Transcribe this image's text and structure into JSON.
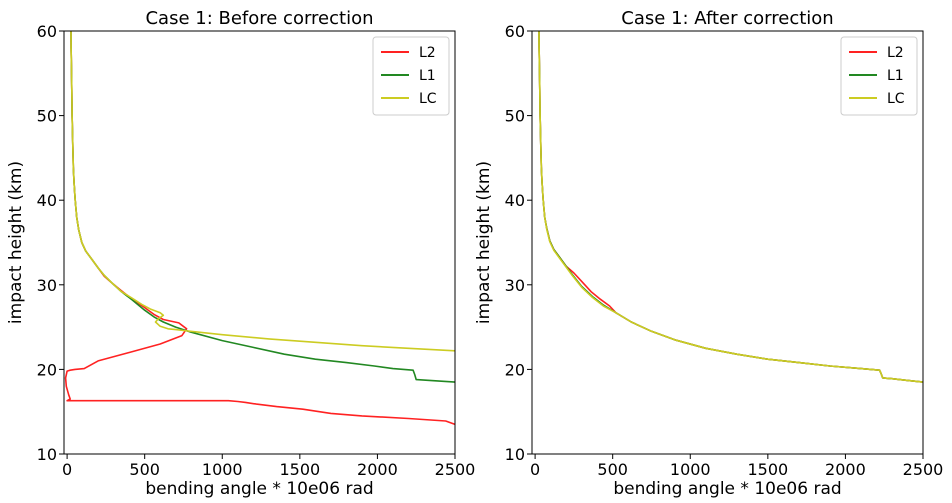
{
  "chart_data": [
    {
      "type": "line",
      "title": "Case 1: Before correction",
      "xlabel": "bending angle * 10e06 rad",
      "ylabel": "impact height (km)",
      "xlim": [
        -20,
        2500
      ],
      "ylim": [
        10,
        60
      ],
      "xticks": [
        0,
        500,
        1000,
        1500,
        2000,
        2500
      ],
      "yticks": [
        10,
        20,
        30,
        40,
        50,
        60
      ],
      "grid": false,
      "legend_position": "top-right",
      "series": [
        {
          "name": "L2",
          "color": "#ff2222",
          "x": [
            2500,
            2440,
            2200,
            1900,
            1700,
            1520,
            1350,
            1220,
            1150,
            1100,
            1040,
            500,
            0,
            20,
            10,
            -5,
            -10,
            0,
            20,
            50,
            110,
            200,
            400,
            600,
            740,
            770,
            720,
            620,
            560,
            500,
            420,
            350,
            290,
            240,
            200,
            160,
            120,
            95,
            75,
            62,
            52,
            45,
            40,
            36,
            32,
            30,
            28,
            26,
            25
          ],
          "y": [
            13.5,
            13.9,
            14.2,
            14.5,
            14.8,
            15.3,
            15.6,
            15.9,
            16.1,
            16.2,
            16.3,
            16.3,
            16.3,
            16.5,
            17.0,
            18.0,
            19.0,
            19.8,
            19.9,
            20.0,
            20.1,
            21.0,
            22.0,
            23.0,
            24.0,
            24.8,
            25.5,
            25.9,
            26.5,
            27.3,
            28.3,
            29.3,
            30.2,
            31.0,
            32.0,
            33.0,
            34.0,
            35.0,
            36.5,
            38.0,
            40.0,
            42.0,
            44.0,
            47.0,
            50.0,
            53.0,
            56.0,
            58.0,
            60.0
          ]
        },
        {
          "name": "L1",
          "color": "#228822",
          "x": [
            2500,
            2250,
            2240,
            2230,
            2100,
            1980,
            1800,
            1600,
            1400,
            1200,
            1000,
            800,
            700,
            620,
            560,
            500,
            420,
            350,
            290,
            240,
            200,
            160,
            120,
            95,
            75,
            62,
            52,
            45,
            40,
            36,
            32,
            30,
            28,
            26,
            25
          ],
          "y": [
            18.5,
            18.8,
            19.4,
            19.9,
            20.1,
            20.4,
            20.8,
            21.2,
            21.8,
            22.6,
            23.4,
            24.4,
            25.0,
            25.6,
            26.2,
            27.0,
            28.2,
            29.2,
            30.2,
            31.1,
            32.0,
            33.0,
            34.0,
            35.0,
            36.5,
            38.0,
            40.0,
            42.0,
            44.0,
            47.0,
            50.0,
            53.0,
            56.0,
            58.0,
            60.0
          ]
        },
        {
          "name": "LC",
          "color": "#cccc22",
          "x": [
            2500,
            2200,
            1900,
            1600,
            1300,
            1000,
            850,
            750,
            700,
            650,
            600,
            570,
            590,
            620,
            600,
            540,
            480,
            420,
            350,
            290,
            240,
            200,
            160,
            120,
            95,
            75,
            62,
            52,
            45,
            40,
            36,
            32,
            30,
            28,
            26,
            25
          ],
          "y": [
            22.2,
            22.5,
            22.8,
            23.2,
            23.6,
            24.1,
            24.4,
            24.6,
            24.7,
            24.8,
            25.1,
            25.6,
            26.0,
            26.4,
            26.7,
            27.1,
            27.7,
            28.4,
            29.2,
            30.2,
            31.1,
            32.0,
            33.0,
            34.0,
            35.0,
            36.5,
            38.0,
            40.0,
            42.0,
            44.0,
            47.0,
            50.0,
            53.0,
            56.0,
            58.0,
            60.0
          ]
        }
      ]
    },
    {
      "type": "line",
      "title": "Case 1: After correction",
      "xlabel": "bending angle * 10e06 rad",
      "ylabel": "impact height (km)",
      "xlim": [
        -20,
        2500
      ],
      "ylim": [
        10,
        60
      ],
      "xticks": [
        0,
        500,
        1000,
        1500,
        2000,
        2500
      ],
      "yticks": [
        10,
        20,
        30,
        40,
        50,
        60
      ],
      "grid": false,
      "legend_position": "top-right",
      "series": [
        {
          "name": "L2",
          "color": "#ff2222",
          "x": [
            2500,
            2400,
            2300,
            2240,
            2230,
            2220,
            2100,
            1900,
            1700,
            1500,
            1300,
            1100,
            900,
            750,
            620,
            520,
            480,
            420,
            360,
            300,
            250,
            200,
            160,
            120,
            95,
            75,
            62,
            52,
            45,
            40,
            36,
            32,
            30,
            28,
            26,
            25
          ],
          "y": [
            18.5,
            18.7,
            18.9,
            19.0,
            19.5,
            19.9,
            20.1,
            20.4,
            20.8,
            21.2,
            21.8,
            22.5,
            23.5,
            24.5,
            25.6,
            26.7,
            27.5,
            28.3,
            29.2,
            30.4,
            31.4,
            32.2,
            33.2,
            34.2,
            35.2,
            36.7,
            38.0,
            40.0,
            42.0,
            44.0,
            47.0,
            50.0,
            53.0,
            56.0,
            58.0,
            60.0
          ]
        },
        {
          "name": "L1",
          "color": "#228822",
          "x": [
            2500,
            2400,
            2300,
            2240,
            2230,
            2220,
            2100,
            1900,
            1700,
            1500,
            1300,
            1100,
            900,
            750,
            620,
            520,
            440,
            370,
            300,
            240,
            200,
            160,
            120,
            95,
            75,
            62,
            52,
            45,
            40,
            36,
            32,
            30,
            28,
            26,
            25
          ],
          "y": [
            18.5,
            18.7,
            18.9,
            19.0,
            19.5,
            19.9,
            20.1,
            20.4,
            20.8,
            21.2,
            21.8,
            22.5,
            23.5,
            24.5,
            25.6,
            26.7,
            27.6,
            28.6,
            29.8,
            31.2,
            32.2,
            33.2,
            34.2,
            35.2,
            36.7,
            38.0,
            40.0,
            42.0,
            44.0,
            47.0,
            50.0,
            53.0,
            56.0,
            58.0,
            60.0
          ]
        },
        {
          "name": "LC",
          "color": "#cccc22",
          "x": [
            2500,
            2400,
            2300,
            2240,
            2230,
            2220,
            2100,
            1900,
            1700,
            1500,
            1300,
            1100,
            900,
            750,
            620,
            520,
            440,
            370,
            300,
            240,
            200,
            160,
            120,
            95,
            75,
            62,
            52,
            45,
            40,
            36,
            32,
            30,
            28,
            26,
            25
          ],
          "y": [
            18.5,
            18.7,
            18.9,
            19.0,
            19.5,
            19.9,
            20.1,
            20.4,
            20.8,
            21.2,
            21.8,
            22.5,
            23.5,
            24.5,
            25.6,
            26.7,
            27.5,
            28.5,
            29.7,
            31.1,
            32.1,
            33.1,
            34.1,
            35.1,
            36.6,
            38.0,
            40.0,
            42.0,
            44.0,
            47.0,
            50.0,
            53.0,
            56.0,
            58.0,
            60.0
          ]
        }
      ]
    }
  ]
}
